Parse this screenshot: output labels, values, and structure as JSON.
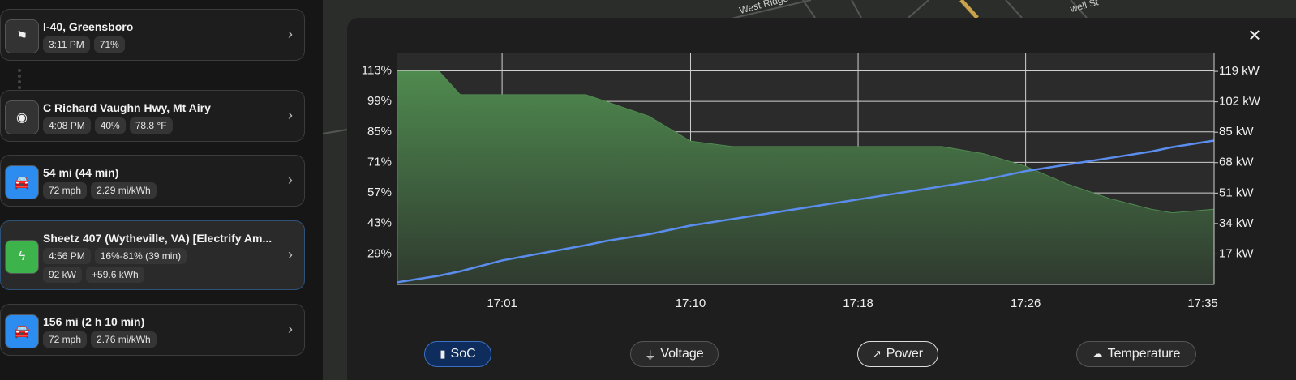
{
  "sidebar": {
    "stops": [
      {
        "title": "I-40, Greensboro",
        "kind": "flag",
        "chips": [
          [
            "3:11 PM",
            "71%"
          ]
        ]
      },
      {
        "title": "C Richard Vaughn Hwy, Mt Airy",
        "kind": "pin",
        "chips": [
          [
            "4:08 PM",
            "40%",
            "78.8 °F"
          ]
        ]
      },
      {
        "title": "54 mi (44 min)",
        "kind": "drive",
        "chips": [
          [
            "72 mph",
            "2.29 mi/kWh"
          ]
        ]
      },
      {
        "title": "Sheetz 407 (Wytheville, VA) [Electrify Am...",
        "kind": "charge",
        "chips": [
          [
            "4:56 PM",
            "16%-81% (39 min)"
          ],
          [
            "92 kW",
            "+59.6 kWh"
          ]
        ]
      },
      {
        "title": "156 mi (2 h 10 min)",
        "kind": "drive",
        "chips": [
          [
            "72 mph",
            "2.76 mi/kWh"
          ]
        ]
      }
    ]
  },
  "map_labels": [
    "West Ridge",
    "well St"
  ],
  "close_label": "✕",
  "other_metrics": [
    "Voltage",
    "Temperature"
  ],
  "chart_data": {
    "type": "line",
    "x": [
      "16:56",
      "16:58",
      "16:59",
      "17:01",
      "17:05",
      "17:06",
      "17:08",
      "17:10",
      "17:12",
      "17:16",
      "17:20",
      "17:22",
      "17:24",
      "17:26",
      "17:28",
      "17:30",
      "17:32",
      "17:33",
      "17:35"
    ],
    "series": [
      {
        "name": "SoC",
        "color": "#5b8def",
        "axis": "y",
        "values": [
          16,
          19,
          21,
          26,
          33,
          35,
          38,
          42,
          45,
          51,
          57,
          60,
          63,
          67,
          70,
          73,
          76,
          78,
          81
        ]
      },
      {
        "name": "Power",
        "color": "#4f8a4f",
        "axis": "y2",
        "values": [
          119,
          119,
          106,
          106,
          106,
          102,
          94,
          80,
          77,
          77,
          77,
          77,
          73,
          66,
          56,
          48,
          42,
          40,
          42
        ]
      }
    ],
    "xlim": [
      "16:56",
      "17:35"
    ],
    "xticks": [
      "17:01",
      "17:10",
      "17:18",
      "17:26",
      "17:35"
    ],
    "ylim": [
      15,
      121
    ],
    "yticks": [
      {
        "value": 29,
        "label": "29%"
      },
      {
        "value": 43,
        "label": "43%"
      },
      {
        "value": 57,
        "label": "57%"
      },
      {
        "value": 71,
        "label": "71%"
      },
      {
        "value": 85,
        "label": "85%"
      },
      {
        "value": 99,
        "label": "99%"
      },
      {
        "value": 113,
        "label": "113%"
      }
    ],
    "y2lim": [
      0,
      129
    ],
    "y2ticks": [
      {
        "value": 17,
        "label": "17 kW"
      },
      {
        "value": 34,
        "label": "34 kW"
      },
      {
        "value": 51,
        "label": "51 kW"
      },
      {
        "value": 68,
        "label": "68 kW"
      },
      {
        "value": 85,
        "label": "85 kW"
      },
      {
        "value": 102,
        "label": "102 kW"
      },
      {
        "value": 119,
        "label": "119 kW"
      }
    ],
    "grid": true
  }
}
